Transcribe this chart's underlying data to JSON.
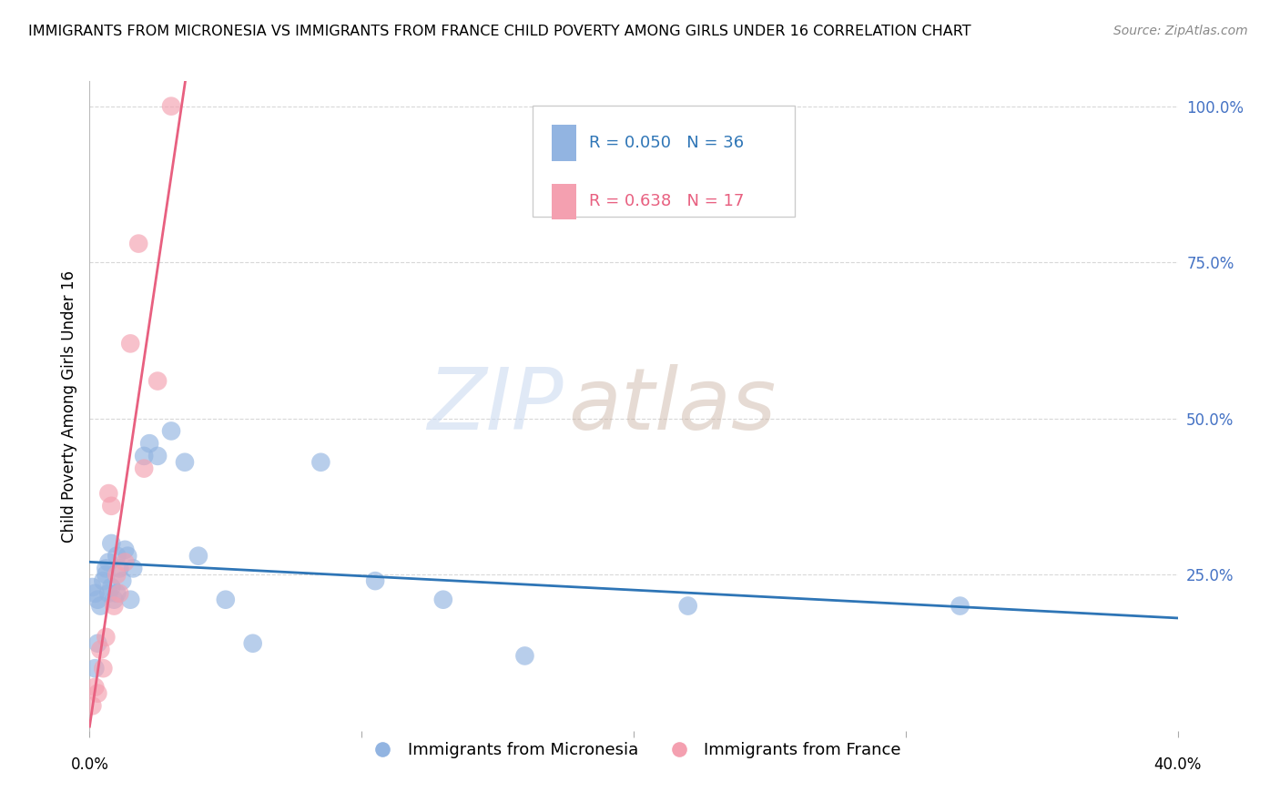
{
  "title": "IMMIGRANTS FROM MICRONESIA VS IMMIGRANTS FROM FRANCE CHILD POVERTY AMONG GIRLS UNDER 16 CORRELATION CHART",
  "source": "Source: ZipAtlas.com",
  "ylabel": "Child Poverty Among Girls Under 16",
  "xlim": [
    0.0,
    0.4
  ],
  "ylim": [
    0.0,
    1.04
  ],
  "micronesia_x": [
    0.001,
    0.002,
    0.003,
    0.004,
    0.005,
    0.006,
    0.006,
    0.007,
    0.007,
    0.008,
    0.008,
    0.009,
    0.01,
    0.01,
    0.011,
    0.012,
    0.013,
    0.014,
    0.015,
    0.016,
    0.02,
    0.022,
    0.025,
    0.03,
    0.035,
    0.04,
    0.05,
    0.06,
    0.085,
    0.105,
    0.13,
    0.16,
    0.22,
    0.32,
    0.003,
    0.002
  ],
  "micronesia_y": [
    0.23,
    0.22,
    0.21,
    0.2,
    0.24,
    0.25,
    0.26,
    0.22,
    0.27,
    0.23,
    0.3,
    0.21,
    0.22,
    0.28,
    0.26,
    0.24,
    0.29,
    0.28,
    0.21,
    0.26,
    0.44,
    0.46,
    0.44,
    0.48,
    0.43,
    0.28,
    0.21,
    0.14,
    0.43,
    0.24,
    0.21,
    0.12,
    0.2,
    0.2,
    0.14,
    0.1
  ],
  "france_x": [
    0.001,
    0.002,
    0.003,
    0.004,
    0.005,
    0.006,
    0.007,
    0.008,
    0.009,
    0.01,
    0.011,
    0.013,
    0.015,
    0.018,
    0.02,
    0.025,
    0.03
  ],
  "france_y": [
    0.04,
    0.07,
    0.06,
    0.13,
    0.1,
    0.15,
    0.38,
    0.36,
    0.2,
    0.25,
    0.22,
    0.27,
    0.62,
    0.78,
    0.42,
    0.56,
    1.0
  ],
  "micronesia_color": "#92B4E1",
  "france_color": "#F4A0B0",
  "micronesia_line_color": "#2E75B6",
  "france_line_color": "#E86080",
  "R_micronesia": 0.05,
  "N_micronesia": 36,
  "R_france": 0.638,
  "N_france": 17,
  "watermark_zip": "ZIP",
  "watermark_atlas": "atlas",
  "background_color": "#ffffff",
  "grid_color": "#d8d8d8",
  "title_fontsize": 11.5,
  "source_fontsize": 10,
  "axis_label_fontsize": 12,
  "tick_fontsize": 12,
  "legend_fontsize": 13,
  "watermark_color_zip": "#C8D8F0",
  "watermark_color_atlas": "#C8B0A0"
}
